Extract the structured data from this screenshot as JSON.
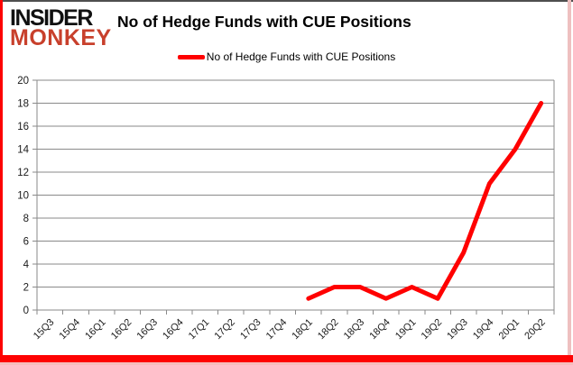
{
  "logo": {
    "line1": "INSIDER",
    "line2": "MONKEY"
  },
  "header": {
    "title": "No of Hedge Funds with CUE Positions"
  },
  "legend": {
    "label": "No of Hedge Funds with CUE Positions"
  },
  "colors": {
    "series": "#ff0000",
    "grid": "#8a8a8a",
    "axis_text": "#1a1a1a",
    "logo_accent": "#c8402c",
    "border_bottom": "#fe0202"
  },
  "chart_data": {
    "type": "line",
    "title": "No of Hedge Funds with CUE Positions",
    "categories": [
      "15Q3",
      "15Q4",
      "16Q1",
      "16Q2",
      "16Q3",
      "16Q4",
      "17Q1",
      "17Q2",
      "17Q3",
      "17Q4",
      "18Q1",
      "18Q2",
      "18Q3",
      "18Q4",
      "19Q1",
      "19Q2",
      "19Q3",
      "19Q4",
      "20Q1",
      "20Q2"
    ],
    "series": [
      {
        "name": "No of Hedge Funds with CUE Positions",
        "color": "#ff0000",
        "values": [
          null,
          null,
          null,
          null,
          null,
          null,
          null,
          null,
          null,
          null,
          1,
          2,
          2,
          1,
          2,
          1,
          5,
          11,
          14,
          18
        ]
      }
    ],
    "xlabel": "",
    "ylabel": "",
    "ylim": [
      0,
      20
    ],
    "ytick_step": 2,
    "grid": true,
    "legend_position": "top-center"
  }
}
